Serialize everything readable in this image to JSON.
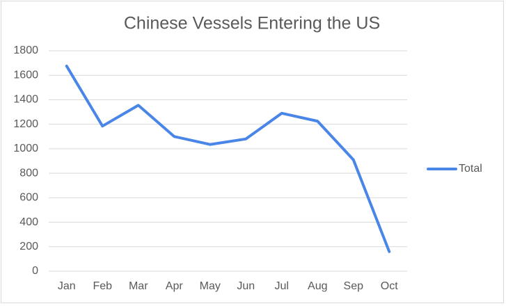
{
  "chart_data": {
    "type": "line",
    "title": "Chinese Vessels Entering the US",
    "categories": [
      "Jan",
      "Feb",
      "Mar",
      "Apr",
      "May",
      "Jun",
      "Jul",
      "Aug",
      "Sep",
      "Oct"
    ],
    "series": [
      {
        "name": "Total",
        "color": "#4a86e8",
        "values": [
          1675,
          1185,
          1355,
          1100,
          1035,
          1080,
          1290,
          1225,
          910,
          160
        ]
      }
    ],
    "ylim": [
      0,
      1800
    ],
    "yticks": [
      0,
      200,
      400,
      600,
      800,
      1000,
      1200,
      1400,
      1600,
      1800
    ],
    "grid": true,
    "legend": "right"
  }
}
